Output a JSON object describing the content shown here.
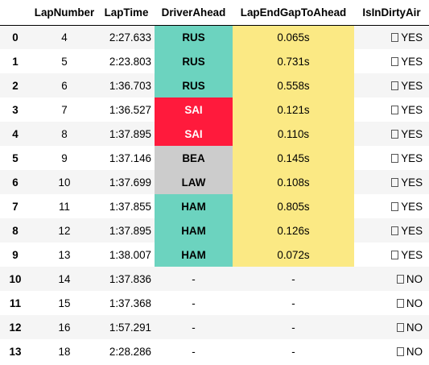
{
  "table": {
    "columns": [
      "",
      "LapNumber",
      "LapTime",
      "DriverAhead",
      "LapEndGapToAhead",
      "IsInDirtyAir"
    ],
    "colors": {
      "RUS": "#6cd3bf",
      "HAM": "#6cd3bf",
      "SAI": "#ff1a3c",
      "BEA": "#cccccc",
      "LAW": "#cccccc",
      "gap": "#fbe984",
      "none": ""
    },
    "rows": [
      {
        "idx": "0",
        "lap": "4",
        "time": "2:27.633",
        "driver": "RUS",
        "gap": "0.065s",
        "dirty": "YES",
        "driver_text": "#000000"
      },
      {
        "idx": "1",
        "lap": "5",
        "time": "2:23.803",
        "driver": "RUS",
        "gap": "0.731s",
        "dirty": "YES",
        "driver_text": "#000000"
      },
      {
        "idx": "2",
        "lap": "6",
        "time": "1:36.703",
        "driver": "RUS",
        "gap": "0.558s",
        "dirty": "YES",
        "driver_text": "#000000"
      },
      {
        "idx": "3",
        "lap": "7",
        "time": "1:36.527",
        "driver": "SAI",
        "gap": "0.121s",
        "dirty": "YES",
        "driver_text": "#ffffff"
      },
      {
        "idx": "4",
        "lap": "8",
        "time": "1:37.895",
        "driver": "SAI",
        "gap": "0.110s",
        "dirty": "YES",
        "driver_text": "#ffffff"
      },
      {
        "idx": "5",
        "lap": "9",
        "time": "1:37.146",
        "driver": "BEA",
        "gap": "0.145s",
        "dirty": "YES",
        "driver_text": "#000000"
      },
      {
        "idx": "6",
        "lap": "10",
        "time": "1:37.699",
        "driver": "LAW",
        "gap": "0.108s",
        "dirty": "YES",
        "driver_text": "#000000"
      },
      {
        "idx": "7",
        "lap": "11",
        "time": "1:37.855",
        "driver": "HAM",
        "gap": "0.805s",
        "dirty": "YES",
        "driver_text": "#000000"
      },
      {
        "idx": "8",
        "lap": "12",
        "time": "1:37.895",
        "driver": "HAM",
        "gap": "0.126s",
        "dirty": "YES",
        "driver_text": "#000000"
      },
      {
        "idx": "9",
        "lap": "13",
        "time": "1:38.007",
        "driver": "HAM",
        "gap": "0.072s",
        "dirty": "YES",
        "driver_text": "#000000"
      },
      {
        "idx": "10",
        "lap": "14",
        "time": "1:37.836",
        "driver": "-",
        "gap": "-",
        "dirty": "NO",
        "driver_text": "#000000"
      },
      {
        "idx": "11",
        "lap": "15",
        "time": "1:37.368",
        "driver": "-",
        "gap": "-",
        "dirty": "NO",
        "driver_text": "#000000"
      },
      {
        "idx": "12",
        "lap": "16",
        "time": "1:57.291",
        "driver": "-",
        "gap": "-",
        "dirty": "NO",
        "driver_text": "#000000"
      },
      {
        "idx": "13",
        "lap": "18",
        "time": "2:28.286",
        "driver": "-",
        "gap": "-",
        "dirty": "NO",
        "driver_text": "#000000"
      }
    ]
  }
}
